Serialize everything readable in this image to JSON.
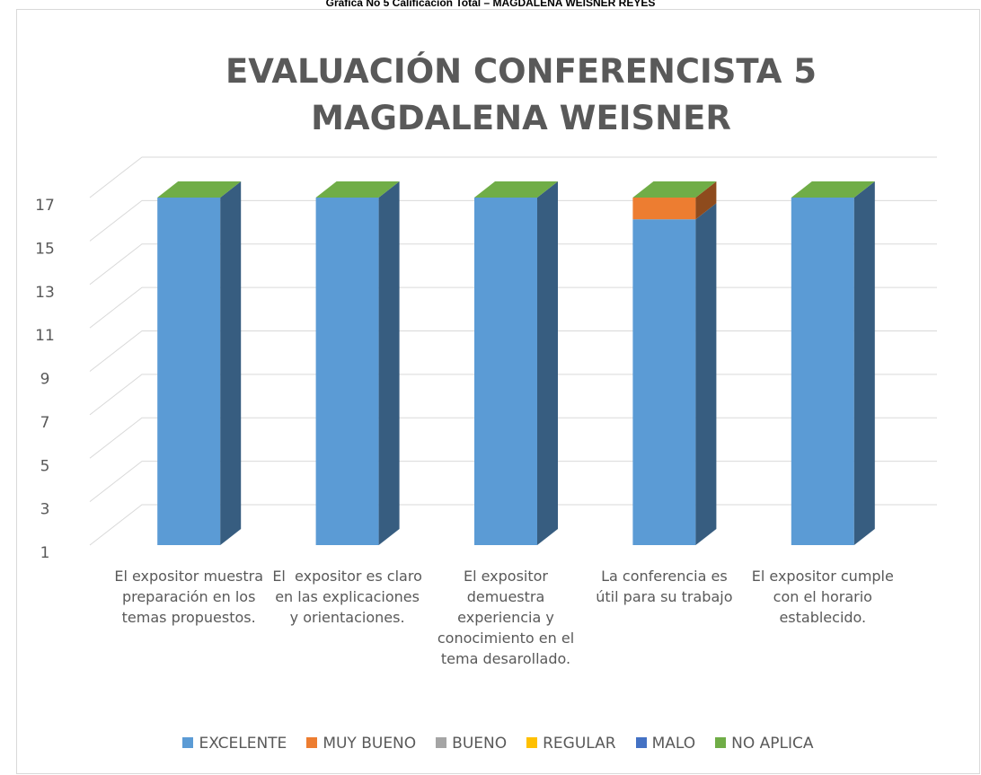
{
  "caption": "Gráfica No 5 Calificación Total – MAGDALENA WEISNER REYES",
  "chart_data": {
    "type": "bar3d_stacked",
    "title": [
      "EVALUACIÓN CONFERENCISTA 5",
      "MAGDALENA WEISNER"
    ],
    "categories": [
      "El expositor muestra preparación en los temas propuestos.",
      "El  expositor es claro en las explicaciones y orientaciones.",
      "El expositor demuestra experiencia y conocimiento en el tema desarollado.",
      "La conferencia es útil para su trabajo",
      "El expositor cumple con el horario establecido."
    ],
    "series": [
      {
        "name": "EXCELENTE",
        "color": "#5b9bd5",
        "values": [
          16,
          16,
          16,
          15,
          16
        ]
      },
      {
        "name": "MUY BUENO",
        "color": "#ed7d31",
        "values": [
          0,
          0,
          0,
          1,
          0
        ]
      },
      {
        "name": "BUENO",
        "color": "#a5a5a5",
        "values": [
          0,
          0,
          0,
          0,
          0
        ]
      },
      {
        "name": "REGULAR",
        "color": "#ffc000",
        "values": [
          0,
          0,
          0,
          0,
          0
        ]
      },
      {
        "name": "MALO",
        "color": "#4472c4",
        "values": [
          0,
          0,
          0,
          0,
          0
        ]
      },
      {
        "name": "NO APLICA",
        "color": "#70ad47",
        "values": [
          0,
          0,
          0,
          0,
          0
        ]
      }
    ],
    "ylim": [
      1,
      17
    ],
    "yticks": [
      1,
      3,
      5,
      7,
      9,
      11,
      13,
      15,
      17
    ],
    "grid": true,
    "legend": "bottom"
  }
}
